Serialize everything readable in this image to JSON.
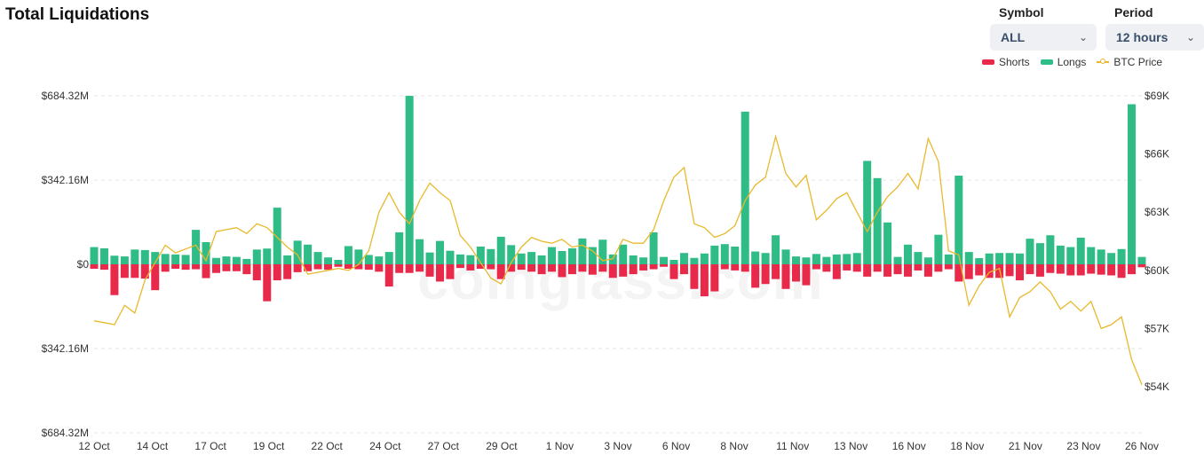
{
  "header": {
    "title": "Total Liquidations"
  },
  "controls": {
    "symbol_label": "Symbol",
    "symbol_value": "ALL",
    "period_label": "Period",
    "period_value": "12 hours",
    "chevron_icon": "chevron-down-icon"
  },
  "watermark": "coinglass.com",
  "colors": {
    "shorts": "#e8294a",
    "longs": "#2fbc86",
    "btc": "#e8b92c"
  },
  "chart_data": {
    "type": "bar",
    "title": "Total Liquidations",
    "legend": {
      "position": "top-right",
      "entries": [
        "Shorts",
        "Longs",
        "BTC Price"
      ]
    },
    "series_names": {
      "shorts": "Shorts",
      "longs": "Longs",
      "btc": "BTC Price"
    },
    "y_left": {
      "min": -684.32,
      "max": 684.32,
      "ticks": [
        684.32,
        342.16,
        0,
        -342.16,
        -684.32
      ],
      "tick_labels": [
        "$684.32M",
        "$342.16M",
        "$0",
        "$342.16M",
        "$684.32M"
      ]
    },
    "y_right": {
      "min": 54000,
      "max": 69000,
      "ticks": [
        69000,
        66000,
        63000,
        60000,
        57000,
        54000
      ],
      "tick_labels": [
        "$69K",
        "$66K",
        "$63K",
        "$60K",
        "$57K",
        "$54K"
      ]
    },
    "x_tick_labels": [
      "12 Oct",
      "14 Oct",
      "17 Oct",
      "19 Oct",
      "22 Oct",
      "24 Oct",
      "27 Oct",
      "29 Oct",
      "1 Nov",
      "3 Nov",
      "6 Nov",
      "8 Nov",
      "11 Nov",
      "13 Nov",
      "16 Nov",
      "18 Nov",
      "21 Nov",
      "23 Nov",
      "26 Nov"
    ],
    "x_tick_index": [
      0,
      5,
      10,
      15,
      20,
      25,
      30,
      35,
      40,
      45,
      50,
      55,
      60,
      65,
      70,
      75,
      80,
      85,
      90
    ],
    "grid": true,
    "longs": [
      70,
      65,
      35,
      32,
      60,
      58,
      50,
      42,
      40,
      38,
      140,
      90,
      26,
      32,
      30,
      22,
      60,
      64,
      230,
      36,
      96,
      80,
      50,
      28,
      18,
      74,
      60,
      38,
      32,
      50,
      130,
      684,
      102,
      48,
      95,
      55,
      40,
      37,
      72,
      62,
      112,
      78,
      44,
      50,
      36,
      70,
      54,
      65,
      105,
      70,
      100,
      40,
      80,
      36,
      28,
      130,
      30,
      18,
      46,
      26,
      44,
      76,
      82,
      72,
      620,
      52,
      46,
      118,
      60,
      32,
      28,
      42,
      30,
      40,
      42,
      46,
      420,
      350,
      170,
      30,
      80,
      50,
      28,
      120,
      40,
      360,
      50,
      25,
      44,
      46,
      46,
      44,
      104,
      86,
      118,
      76,
      70,
      108,
      70,
      60,
      46,
      62,
      650,
      30
    ],
    "shorts": [
      18,
      22,
      125,
      55,
      55,
      58,
      105,
      30,
      18,
      22,
      20,
      56,
      35,
      28,
      28,
      40,
      65,
      150,
      65,
      60,
      32,
      28,
      20,
      22,
      10,
      18,
      20,
      22,
      30,
      90,
      35,
      35,
      30,
      50,
      70,
      60,
      15,
      25,
      18,
      20,
      60,
      30,
      22,
      30,
      40,
      30,
      52,
      40,
      30,
      42,
      30,
      55,
      50,
      40,
      25,
      20,
      10,
      60,
      40,
      100,
      130,
      110,
      20,
      25,
      30,
      95,
      80,
      60,
      100,
      70,
      85,
      20,
      30,
      60,
      25,
      30,
      50,
      30,
      50,
      40,
      50,
      25,
      50,
      30,
      20,
      70,
      60,
      45,
      55,
      55,
      48,
      65,
      40,
      50,
      35,
      38,
      45,
      45,
      38,
      42,
      45,
      55,
      40,
      12
    ],
    "btc_price": [
      57400,
      57300,
      57200,
      58200,
      57800,
      59500,
      60400,
      61300,
      60900,
      61100,
      61300,
      60500,
      62000,
      62100,
      62200,
      61900,
      62400,
      62200,
      61700,
      61200,
      60800,
      59800,
      59900,
      60000,
      60100,
      60000,
      60300,
      61000,
      63000,
      64000,
      63000,
      62400,
      63600,
      64500,
      64000,
      63600,
      61800,
      61200,
      60400,
      59600,
      59300,
      60400,
      61200,
      61700,
      61500,
      61400,
      61600,
      61200,
      61300,
      61000,
      60500,
      60600,
      61600,
      61400,
      61400,
      62100,
      63600,
      64800,
      65300,
      62400,
      62200,
      61700,
      61900,
      62300,
      63600,
      64400,
      64800,
      66900,
      65000,
      64300,
      64900,
      62600,
      63100,
      63700,
      64000,
      63000,
      62000,
      63000,
      63800,
      64300,
      65000,
      64200,
      66800,
      65600,
      61000,
      60800,
      58200,
      59200,
      59900,
      60100,
      57600,
      58600,
      58900,
      59400,
      58900,
      58000,
      58400,
      57900,
      58400,
      57000,
      57200,
      57600,
      55400,
      54100
    ]
  }
}
